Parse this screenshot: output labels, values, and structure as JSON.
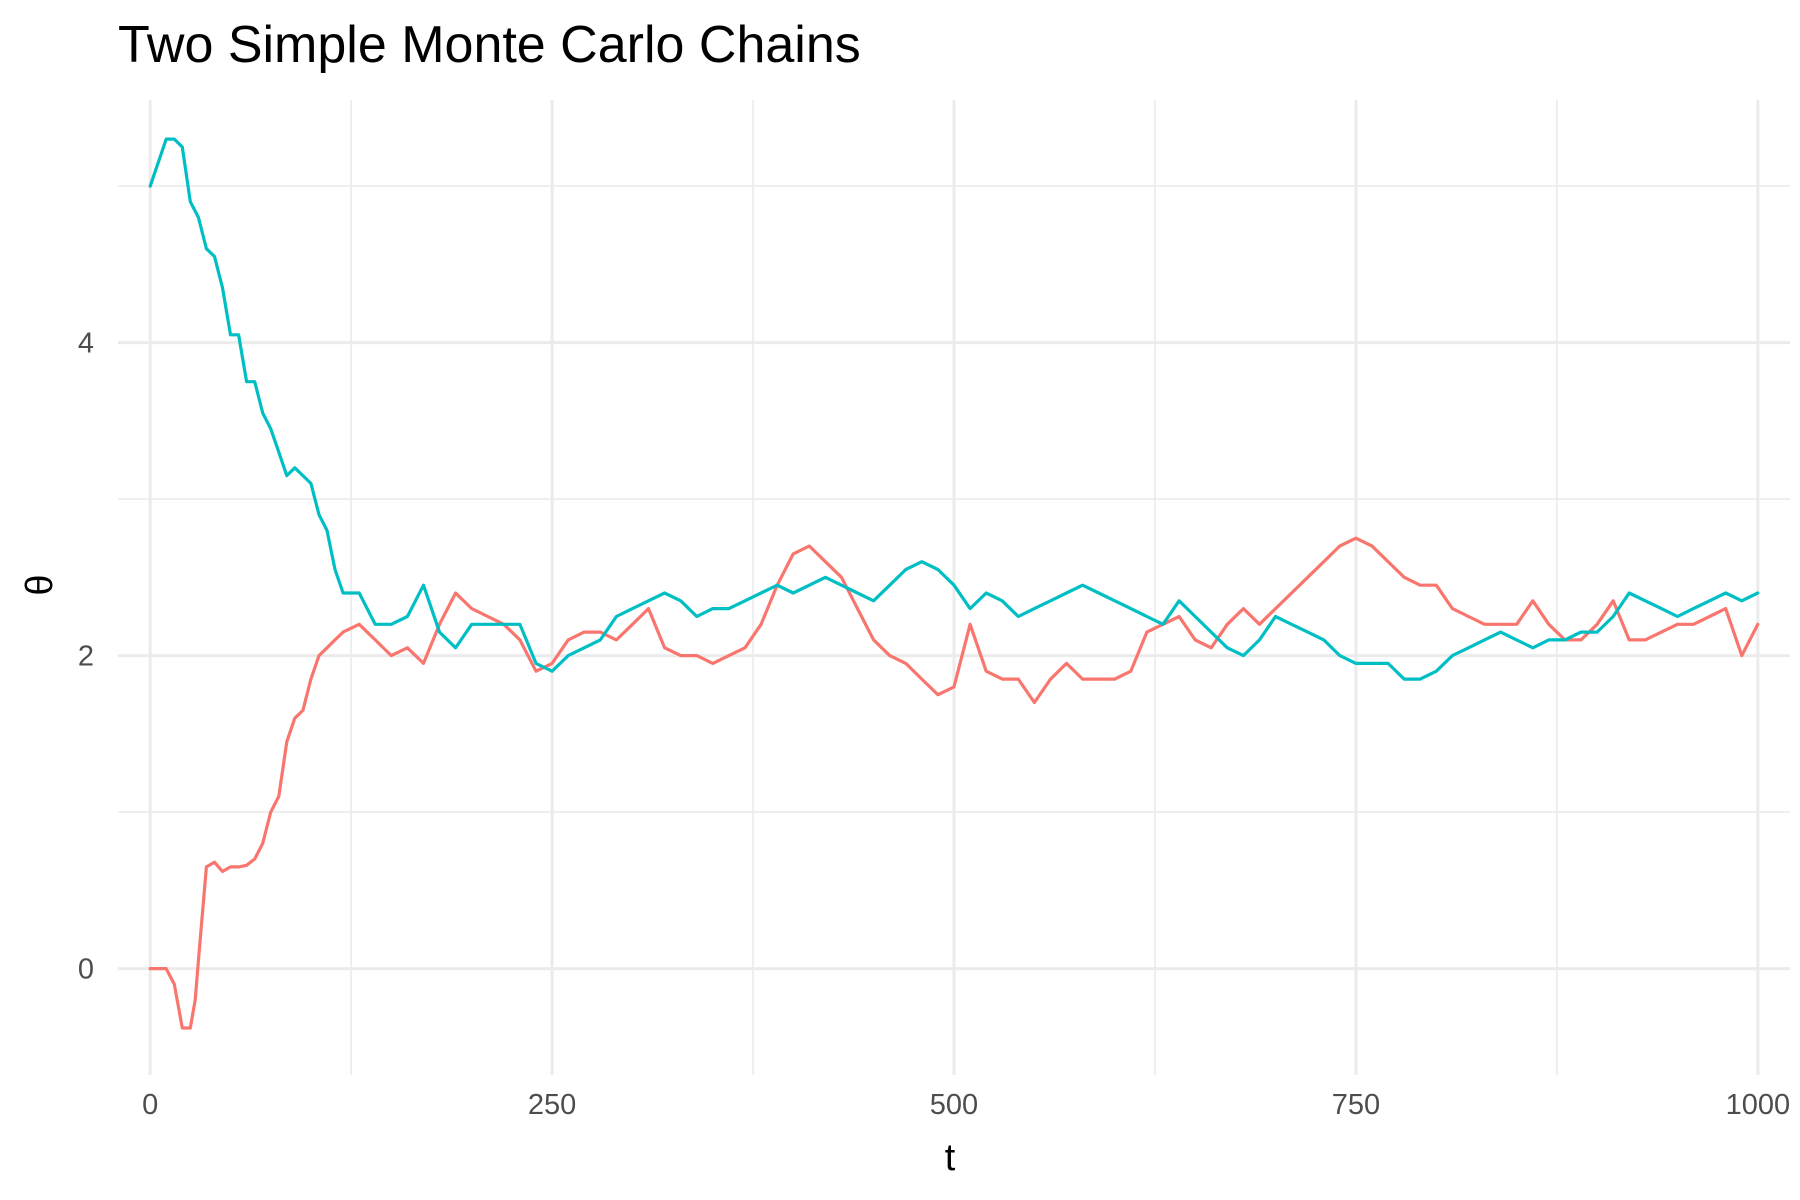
{
  "chart_data": {
    "type": "line",
    "title": "Two Simple Monte Carlo Chains",
    "xlabel": "t",
    "ylabel": "θ",
    "xlim": [
      -20,
      1020
    ],
    "ylim": [
      -0.68,
      5.55
    ],
    "x_ticks": [
      0,
      250,
      500,
      750,
      1000
    ],
    "x_tick_labels": [
      "0",
      "250",
      "500",
      "750",
      "1000"
    ],
    "y_ticks": [
      0,
      2,
      4
    ],
    "y_tick_labels": [
      "0",
      "2",
      "4"
    ],
    "x_minor_ticks": [
      125,
      375,
      625,
      875
    ],
    "y_minor_ticks": [
      1,
      3,
      5
    ],
    "grid": true,
    "legend": "none",
    "series": [
      {
        "color": "#F8766D",
        "x": [
          0,
          10,
          15,
          20,
          25,
          28,
          30,
          35,
          40,
          45,
          50,
          55,
          60,
          65,
          70,
          75,
          80,
          85,
          90,
          95,
          100,
          105,
          110,
          115,
          120,
          130,
          140,
          150,
          160,
          170,
          180,
          190,
          200,
          210,
          220,
          230,
          240,
          250,
          260,
          270,
          280,
          290,
          300,
          310,
          320,
          330,
          340,
          350,
          360,
          370,
          380,
          390,
          400,
          410,
          420,
          430,
          440,
          450,
          460,
          470,
          480,
          490,
          500,
          510,
          520,
          530,
          540,
          550,
          560,
          570,
          580,
          590,
          600,
          610,
          620,
          630,
          640,
          650,
          660,
          670,
          680,
          690,
          700,
          710,
          720,
          730,
          740,
          750,
          760,
          770,
          780,
          790,
          800,
          810,
          820,
          830,
          840,
          850,
          860,
          870,
          880,
          890,
          900,
          910,
          920,
          930,
          940,
          950,
          960,
          970,
          980,
          990,
          1000
        ],
        "y": [
          0,
          0,
          -0.1,
          -0.38,
          -0.38,
          -0.2,
          0.05,
          0.65,
          0.68,
          0.62,
          0.65,
          0.65,
          0.66,
          0.7,
          0.8,
          1.0,
          1.1,
          1.45,
          1.6,
          1.65,
          1.85,
          2.0,
          2.05,
          2.1,
          2.15,
          2.2,
          2.1,
          2.0,
          2.05,
          1.95,
          2.2,
          2.4,
          2.3,
          2.25,
          2.2,
          2.1,
          1.9,
          1.95,
          2.1,
          2.15,
          2.15,
          2.1,
          2.2,
          2.3,
          2.05,
          2.0,
          2.0,
          1.95,
          2.0,
          2.05,
          2.2,
          2.45,
          2.65,
          2.7,
          2.6,
          2.5,
          2.3,
          2.1,
          2.0,
          1.95,
          1.85,
          1.75,
          1.8,
          2.2,
          1.9,
          1.85,
          1.85,
          1.7,
          1.85,
          1.95,
          1.85,
          1.85,
          1.85,
          1.9,
          2.15,
          2.2,
          2.25,
          2.1,
          2.05,
          2.2,
          2.3,
          2.2,
          2.3,
          2.4,
          2.5,
          2.6,
          2.7,
          2.75,
          2.7,
          2.6,
          2.5,
          2.45,
          2.45,
          2.3,
          2.25,
          2.2,
          2.2,
          2.2,
          2.35,
          2.2,
          2.1,
          2.1,
          2.2,
          2.35,
          2.1,
          2.1,
          2.15,
          2.2,
          2.2,
          2.25,
          2.3,
          2.0,
          2.2
        ]
      },
      {
        "color": "#00BFC4",
        "x": [
          0,
          5,
          10,
          15,
          20,
          25,
          30,
          35,
          40,
          45,
          50,
          55,
          60,
          65,
          70,
          75,
          80,
          85,
          90,
          95,
          100,
          105,
          110,
          115,
          120,
          130,
          140,
          150,
          160,
          170,
          180,
          190,
          200,
          210,
          220,
          230,
          240,
          250,
          260,
          270,
          280,
          290,
          300,
          310,
          320,
          330,
          340,
          350,
          360,
          370,
          380,
          390,
          400,
          410,
          420,
          430,
          440,
          450,
          460,
          470,
          480,
          490,
          500,
          510,
          520,
          530,
          540,
          550,
          560,
          570,
          580,
          590,
          600,
          610,
          620,
          630,
          640,
          650,
          660,
          670,
          680,
          690,
          700,
          710,
          720,
          730,
          740,
          750,
          760,
          770,
          780,
          790,
          800,
          810,
          820,
          830,
          840,
          850,
          860,
          870,
          880,
          890,
          900,
          910,
          920,
          930,
          940,
          950,
          960,
          970,
          980,
          990,
          1000
        ],
        "y": [
          5.0,
          5.15,
          5.3,
          5.3,
          5.25,
          4.9,
          4.8,
          4.6,
          4.55,
          4.35,
          4.05,
          4.05,
          3.75,
          3.75,
          3.55,
          3.45,
          3.3,
          3.15,
          3.2,
          3.15,
          3.1,
          2.9,
          2.8,
          2.55,
          2.4,
          2.4,
          2.2,
          2.2,
          2.25,
          2.45,
          2.15,
          2.05,
          2.2,
          2.2,
          2.2,
          2.2,
          1.95,
          1.9,
          2.0,
          2.05,
          2.1,
          2.25,
          2.3,
          2.35,
          2.4,
          2.35,
          2.25,
          2.3,
          2.3,
          2.35,
          2.4,
          2.45,
          2.4,
          2.45,
          2.5,
          2.45,
          2.4,
          2.35,
          2.45,
          2.55,
          2.6,
          2.55,
          2.45,
          2.3,
          2.4,
          2.35,
          2.25,
          2.3,
          2.35,
          2.4,
          2.45,
          2.4,
          2.35,
          2.3,
          2.25,
          2.2,
          2.35,
          2.25,
          2.15,
          2.05,
          2.0,
          2.1,
          2.25,
          2.2,
          2.15,
          2.1,
          2.0,
          1.95,
          1.95,
          1.95,
          1.85,
          1.85,
          1.9,
          2.0,
          2.05,
          2.1,
          2.15,
          2.1,
          2.05,
          2.1,
          2.1,
          2.15,
          2.15,
          2.25,
          2.4,
          2.35,
          2.3,
          2.25,
          2.3,
          2.35,
          2.4,
          2.35,
          2.4
        ]
      }
    ]
  }
}
